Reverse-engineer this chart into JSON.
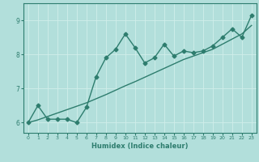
{
  "title": "",
  "xlabel": "Humidex (Indice chaleur)",
  "bg_color": "#b2dfdb",
  "line_color": "#2e7d6e",
  "grid_color": "#d0eeea",
  "x_jagged": [
    0,
    1,
    2,
    3,
    4,
    5,
    6,
    7,
    8,
    9,
    10,
    11,
    12,
    13,
    14,
    15,
    16,
    17,
    18,
    19,
    20,
    21,
    22,
    23
  ],
  "y_jagged": [
    6.0,
    6.5,
    6.1,
    6.1,
    6.1,
    6.0,
    6.45,
    7.35,
    7.9,
    8.15,
    8.6,
    8.2,
    7.75,
    7.9,
    8.3,
    7.95,
    8.1,
    8.05,
    8.1,
    8.25,
    8.5,
    8.75,
    8.5,
    9.15
  ],
  "x_smooth": [
    0,
    1,
    2,
    3,
    4,
    5,
    6,
    7,
    8,
    9,
    10,
    11,
    12,
    13,
    14,
    15,
    16,
    17,
    18,
    19,
    20,
    21,
    22,
    23
  ],
  "y_smooth": [
    6.0,
    6.08,
    6.18,
    6.28,
    6.38,
    6.48,
    6.58,
    6.7,
    6.82,
    6.95,
    7.08,
    7.2,
    7.33,
    7.46,
    7.59,
    7.72,
    7.85,
    7.95,
    8.05,
    8.15,
    8.3,
    8.45,
    8.6,
    8.85
  ],
  "xlim": [
    -0.5,
    23.5
  ],
  "ylim": [
    5.7,
    9.5
  ],
  "yticks": [
    6,
    7,
    8,
    9
  ],
  "xticks": [
    0,
    1,
    2,
    3,
    4,
    5,
    6,
    7,
    8,
    9,
    10,
    11,
    12,
    13,
    14,
    15,
    16,
    17,
    18,
    19,
    20,
    21,
    22,
    23
  ],
  "marker": "D",
  "marker_size": 2.5,
  "linewidth": 1.0
}
